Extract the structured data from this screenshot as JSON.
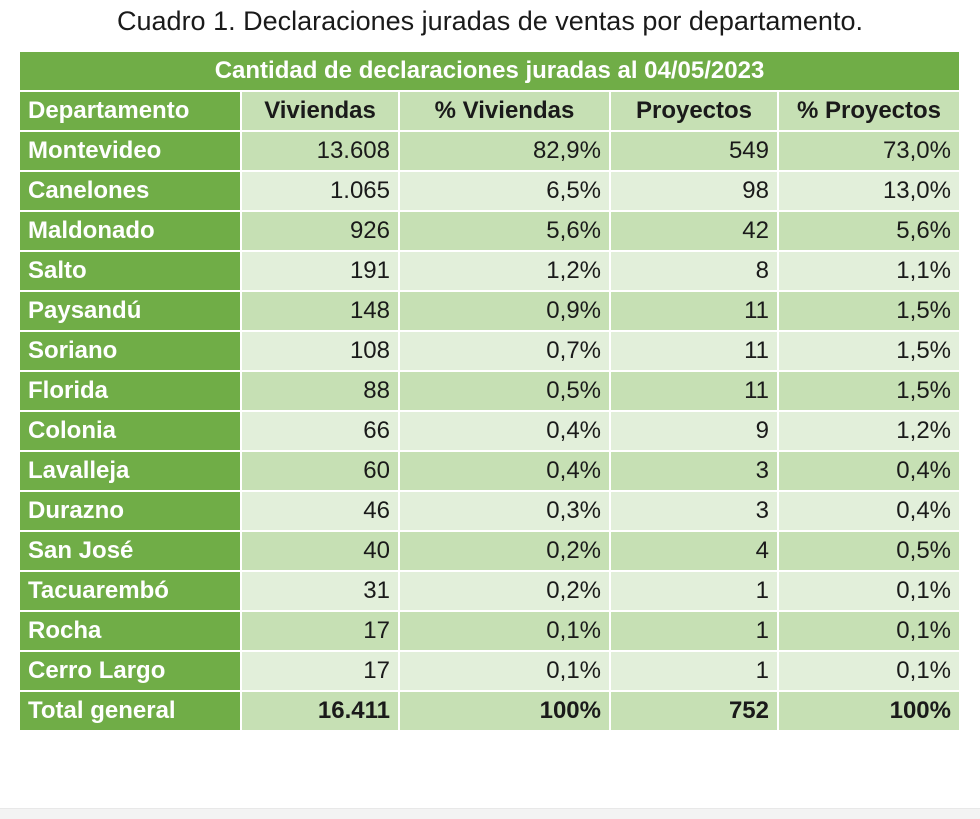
{
  "caption": "Cuadro 1. Declaraciones juradas de ventas por departamento.",
  "band_title": "Cantidad de declaraciones juradas al 04/05/2023",
  "headers": [
    "Departamento",
    "Viviendas",
    "% Viviendas",
    "Proyectos",
    "% Proyectos"
  ],
  "rows": [
    [
      "Montevideo",
      "13.608",
      "82,9%",
      "549",
      "73,0%"
    ],
    [
      "Canelones",
      "1.065",
      "6,5%",
      "98",
      "13,0%"
    ],
    [
      "Maldonado",
      "926",
      "5,6%",
      "42",
      "5,6%"
    ],
    [
      "Salto",
      "191",
      "1,2%",
      "8",
      "1,1%"
    ],
    [
      "Paysandú",
      "148",
      "0,9%",
      "11",
      "1,5%"
    ],
    [
      "Soriano",
      "108",
      "0,7%",
      "11",
      "1,5%"
    ],
    [
      "Florida",
      "88",
      "0,5%",
      "11",
      "1,5%"
    ],
    [
      "Colonia",
      "66",
      "0,4%",
      "9",
      "1,2%"
    ],
    [
      "Lavalleja",
      "60",
      "0,4%",
      "3",
      "0,4%"
    ],
    [
      "Durazno",
      "46",
      "0,3%",
      "3",
      "0,4%"
    ],
    [
      "San José",
      "40",
      "0,2%",
      "4",
      "0,5%"
    ],
    [
      "Tacuarembó",
      "31",
      "0,2%",
      "1",
      "0,1%"
    ],
    [
      "Rocha",
      "17",
      "0,1%",
      "1",
      "0,1%"
    ],
    [
      "Cerro Largo",
      "17",
      "0,1%",
      "1",
      "0,1%"
    ]
  ],
  "total": [
    "Total general",
    "16.411",
    "100%",
    "752",
    "100%"
  ],
  "colors": {
    "header_green": "#70ad47",
    "light_green": "#c6e0b4",
    "lighter_green": "#e2efda"
  }
}
